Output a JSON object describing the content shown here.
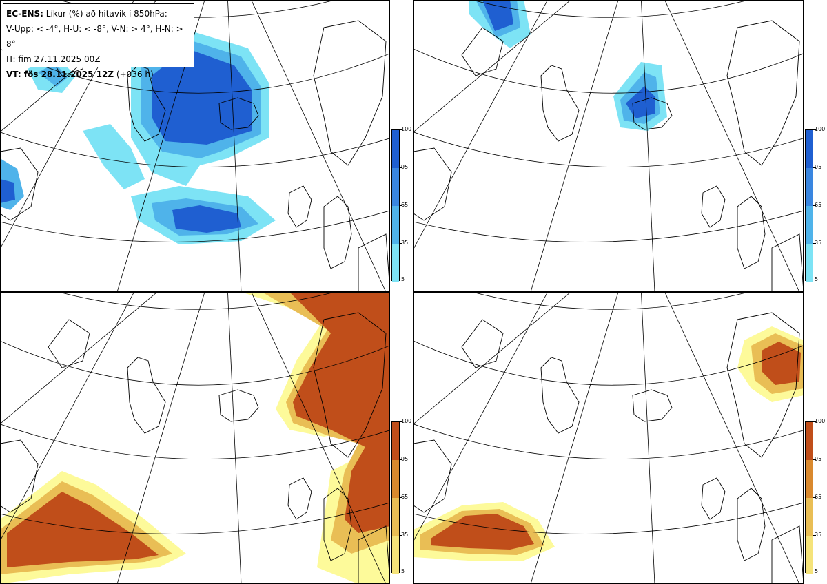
{
  "legend": {
    "model": "EC-ENS:",
    "title": "Líkur (%) að hitavik í 850hPa:",
    "categories": "V-Upp: < -4°, H-U: < -8°, V-N: > 4°, H-N: > 8°",
    "it_line": "IT: fim 27.11.2025 00Z",
    "vt_label": "VT: fös 28.11.2025 12Z",
    "vt_lead": "(+036 h)"
  },
  "panels": [
    {
      "id": "V-Upp",
      "scheme": "blue"
    },
    {
      "id": "H-U",
      "scheme": "blue"
    },
    {
      "id": "V-N",
      "scheme": "orange"
    },
    {
      "id": "H-N",
      "scheme": "orange"
    }
  ],
  "colorbar": {
    "ticks": [
      "100",
      "95",
      "65",
      "35",
      "5"
    ],
    "blue": [
      "#1f5fd1",
      "#3a86e0",
      "#4fb3ea",
      "#7de3f5",
      "#bff8fb"
    ],
    "orange": [
      "#c04e1a",
      "#d9892e",
      "#e9be55",
      "#f5e37a",
      "#fdfa9a"
    ]
  }
}
